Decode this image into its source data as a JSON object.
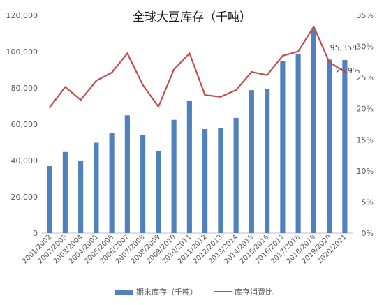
{
  "chart_data": {
    "type": "bar+line",
    "title": "全球大豆库存（千吨）",
    "categories": [
      "2001/2002",
      "2002/2003",
      "2003/2004",
      "2004/2005",
      "2005/2006",
      "2006/2007",
      "2007/2008",
      "2008/2009",
      "2009/2010",
      "2010/2011",
      "2011/2012",
      "2012/2013",
      "2013/2014",
      "2014/2015",
      "2015/2016",
      "2016/2017",
      "2017/2018",
      "2018/2019",
      "2019/2020",
      "2020/2021"
    ],
    "series": [
      {
        "name": "期末库存（千吨）",
        "type": "bar",
        "axis": "left",
        "color": "#4f81bd",
        "values": [
          36900,
          44700,
          40000,
          49800,
          55200,
          64900,
          54100,
          45300,
          62400,
          72900,
          57300,
          58000,
          63500,
          78800,
          79500,
          95000,
          98900,
          112500,
          95600,
          95358
        ]
      },
      {
        "name": "库存消费比",
        "type": "line",
        "axis": "right",
        "color": "#c0504d",
        "values": [
          20.2,
          23.5,
          21.4,
          24.5,
          25.8,
          28.9,
          23.8,
          20.3,
          26.3,
          28.9,
          22.2,
          21.9,
          23.0,
          25.9,
          25.4,
          28.5,
          29.2,
          33.2,
          27.5,
          25.9
        ]
      }
    ],
    "y_left": {
      "min": 0,
      "max": 120000,
      "ticks": [
        "0",
        "20,000",
        "40,000",
        "60,000",
        "80,000",
        "100,000",
        "120,000"
      ]
    },
    "y_right": {
      "min": 0,
      "max": 35,
      "ticks": [
        "0%",
        "5%",
        "10%",
        "15%",
        "20%",
        "25%",
        "30%",
        "35%"
      ]
    },
    "data_labels": [
      {
        "series": 0,
        "index": 19,
        "text": "95,358"
      },
      {
        "series": 1,
        "index": 19,
        "text": "25.9%"
      }
    ],
    "grid": false,
    "legend": "bottom"
  }
}
